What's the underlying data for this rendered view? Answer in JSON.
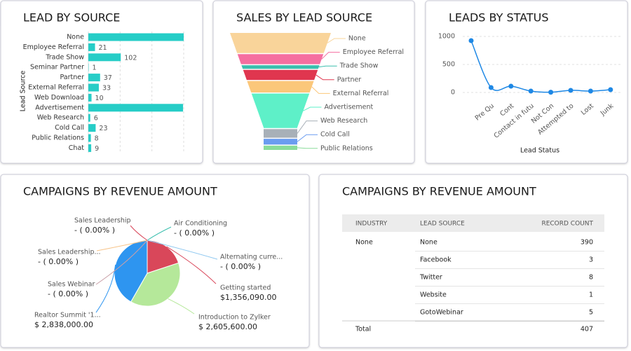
{
  "chart_data": [
    {
      "type": "bar",
      "title": "LEAD BY SOURCE",
      "y_label": "Lead Source",
      "categories": [
        "None",
        "Employee Referral",
        "Trade Show",
        "Seminar Partner",
        "Partner",
        "External Referral",
        "Web Download",
        "Advertisement",
        "Web Research",
        "Cold Call",
        "Public Relations",
        "Chat"
      ],
      "values": [
        300,
        21,
        102,
        1,
        37,
        33,
        10,
        298,
        6,
        23,
        8,
        9
      ],
      "value_labels": [
        null,
        "21",
        "102",
        "1",
        "37",
        "33",
        "10",
        null,
        "6",
        "23",
        "8",
        "9"
      ],
      "color": "#26cdc7",
      "xlim": [
        0,
        300
      ],
      "xticks": [
        0,
        100,
        200,
        300
      ],
      "grid": true
    },
    {
      "type": "funnel",
      "title": "SALES BY LEAD SOURCE",
      "categories": [
        "None",
        "Employee Referral",
        "Trade Show",
        "Partner",
        "External Referral",
        "Advertisement",
        "Web Research",
        "Cold Call",
        "Public Relations"
      ],
      "values": [
        28,
        14,
        5,
        14,
        16,
        48,
        12,
        8,
        6
      ],
      "colors": [
        "#f9d49a",
        "#f56ea0",
        "#3bbfae",
        "#e0364f",
        "#fbc77a",
        "#5ef0c8",
        "#a8b0b8",
        "#6a9cf0",
        "#8adc9a"
      ]
    },
    {
      "type": "line",
      "title": "LEADS BY STATUS",
      "x_label": "Lead Status",
      "categories": [
        null,
        "Pre Qu",
        "Cont",
        "Contact in futu",
        "Not Con",
        "Attempted to",
        "Lost",
        "Junk"
      ],
      "values": [
        925,
        88,
        112,
        25,
        5,
        38,
        25,
        50
      ],
      "color": "#1e88e5",
      "ylim": [
        -100,
        1100
      ],
      "yticks": [
        0,
        500,
        1000
      ],
      "grid": true
    },
    {
      "type": "pie",
      "title": "CAMPAIGNS BY REVENUE AMOUNT",
      "categories": [
        "Getting started",
        "Introduction to Zylker",
        "Realtor Summit '1...",
        "Sales Webinar",
        "Sales Leadership...",
        "Sales Leadership",
        "Air Conditioning",
        "Alternating curre..."
      ],
      "values": [
        1356090,
        2605600,
        2838000,
        0,
        0,
        0,
        0,
        0
      ],
      "value_labels": [
        "$1,356,090.00",
        "$ 2,605,600.00",
        "$ 2,838,000.00",
        "- ( 0.00% )",
        "- ( 0.00% )",
        "- ( 0.00% )",
        "- ( 0.00% )",
        "- ( 0.00% )"
      ],
      "colors": [
        "#d9475a",
        "#b5e89a",
        "#2e95f0",
        "#c9a0a8",
        "#f7c48a",
        "#d9475a",
        "#3bbfae",
        "#8fc8f0"
      ]
    }
  ],
  "table": {
    "title": "CAMPAIGNS BY REVENUE AMOUNT",
    "columns": [
      "INDUSTRY",
      "LEAD SOURCE",
      "RECORD COUNT"
    ],
    "group": "None",
    "rows": [
      [
        "None",
        390
      ],
      [
        "Facebook",
        3
      ],
      [
        "Twitter",
        8
      ],
      [
        "Website",
        1
      ],
      [
        "GotoWebinar",
        5
      ]
    ],
    "total_label": "Total",
    "total": 407
  }
}
